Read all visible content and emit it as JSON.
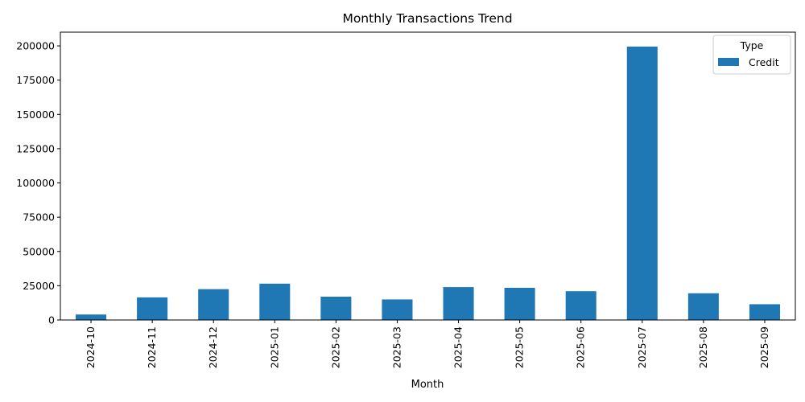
{
  "chart_data": {
    "type": "bar",
    "title": "Monthly Transactions Trend",
    "xlabel": "Month",
    "ylabel": "",
    "categories": [
      "2024-10",
      "2024-11",
      "2024-12",
      "2025-01",
      "2025-02",
      "2025-03",
      "2025-04",
      "2025-05",
      "2025-06",
      "2025-07",
      "2025-08",
      "2025-09"
    ],
    "series": [
      {
        "name": "Credit",
        "color": "#1f77b4",
        "values": [
          4000,
          16500,
          22500,
          26500,
          17000,
          15000,
          24000,
          23500,
          21000,
          199500,
          19500,
          11500
        ]
      }
    ],
    "ylim": [
      0,
      210000
    ],
    "yticks": [
      0,
      25000,
      50000,
      75000,
      100000,
      125000,
      150000,
      175000,
      200000
    ],
    "legend": {
      "title": "Type",
      "position": "top-right"
    },
    "grid": false
  }
}
